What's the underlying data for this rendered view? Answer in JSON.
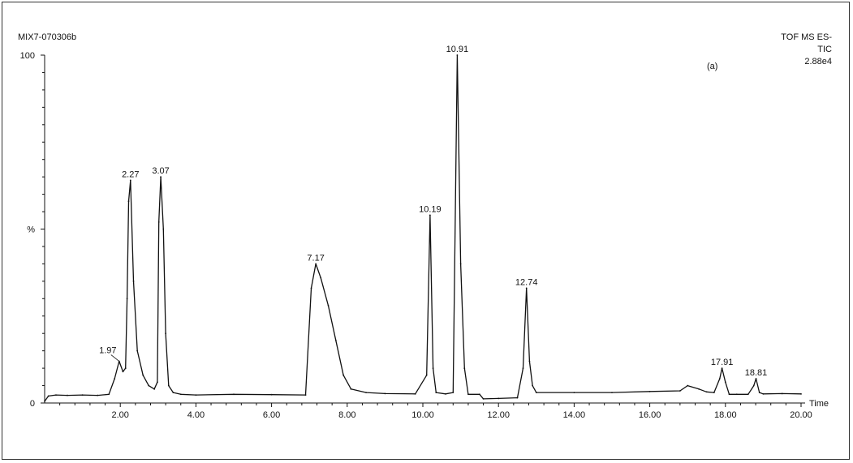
{
  "header": {
    "sample_id": "MIX7-070306b",
    "mode_line1": "TOF MS ES-",
    "mode_line2": "TIC",
    "intensity": "2.88e4",
    "panel_tag": "(a)"
  },
  "chart_data": {
    "type": "line",
    "title": "",
    "xlabel": "Time",
    "ylabel": "%",
    "xlim": [
      0,
      20
    ],
    "ylim": [
      0,
      100
    ],
    "x_ticks": [
      "2.00",
      "4.00",
      "6.00",
      "8.00",
      "10.00",
      "12.00",
      "14.00",
      "16.00",
      "18.00",
      "20.00"
    ],
    "y_tick_labels": [
      "0",
      "%",
      "100"
    ],
    "grid": false,
    "peak_labels": [
      {
        "label": "1.97",
        "x": 1.97,
        "y": 12
      },
      {
        "label": "2.27",
        "x": 2.27,
        "y": 64
      },
      {
        "label": "3.07",
        "x": 3.07,
        "y": 65
      },
      {
        "label": "7.17",
        "x": 7.17,
        "y": 40
      },
      {
        "label": "10.19",
        "x": 10.19,
        "y": 54
      },
      {
        "label": "10.91",
        "x": 10.91,
        "y": 100
      },
      {
        "label": "12.74",
        "x": 12.74,
        "y": 33
      },
      {
        "label": "17.91",
        "x": 17.91,
        "y": 10
      },
      {
        "label": "18.81",
        "x": 18.81,
        "y": 7
      }
    ],
    "series": [
      {
        "x": [
          0.0,
          0.1,
          0.3,
          0.6,
          1.0,
          1.4,
          1.7,
          1.85,
          1.97,
          2.07,
          2.14,
          2.18,
          2.22,
          2.27,
          2.35,
          2.45,
          2.6,
          2.75,
          2.9,
          2.98,
          3.02,
          3.07,
          3.14,
          3.2,
          3.28,
          3.4,
          3.6,
          4.0,
          5.0,
          6.0,
          6.9,
          7.05,
          7.17,
          7.3,
          7.5,
          7.7,
          7.9,
          8.1,
          8.5,
          9.0,
          9.8,
          10.1,
          10.19,
          10.27,
          10.35,
          10.6,
          10.8,
          10.91,
          11.0,
          11.1,
          11.2,
          11.5,
          11.6,
          12.0,
          12.5,
          12.65,
          12.74,
          12.82,
          12.9,
          13.0,
          14.0,
          15.0,
          16.0,
          16.8,
          17.0,
          17.3,
          17.5,
          17.7,
          17.85,
          17.91,
          18.0,
          18.1,
          18.3,
          18.6,
          18.75,
          18.81,
          18.9,
          19.0,
          19.5,
          20.0
        ],
        "y": [
          0.5,
          2,
          2.3,
          2.2,
          2.3,
          2.2,
          2.5,
          7,
          12,
          9,
          10,
          30,
          58,
          64,
          35,
          15,
          8,
          5,
          4,
          6,
          52,
          65,
          50,
          20,
          5,
          3,
          2.5,
          2.3,
          2.5,
          2.4,
          2.3,
          33,
          40,
          36,
          28,
          18,
          8,
          4,
          3,
          2.7,
          2.6,
          8,
          54,
          10,
          3,
          2.6,
          3,
          100,
          40,
          10,
          2.5,
          2.5,
          1.2,
          1.3,
          1.5,
          10,
          33,
          12,
          5,
          3,
          3,
          3,
          3.3,
          3.5,
          5,
          4,
          3.2,
          3,
          7,
          10,
          6,
          2.5,
          2.5,
          2.5,
          5,
          7,
          3,
          2.6,
          2.7,
          2.6
        ]
      }
    ]
  }
}
